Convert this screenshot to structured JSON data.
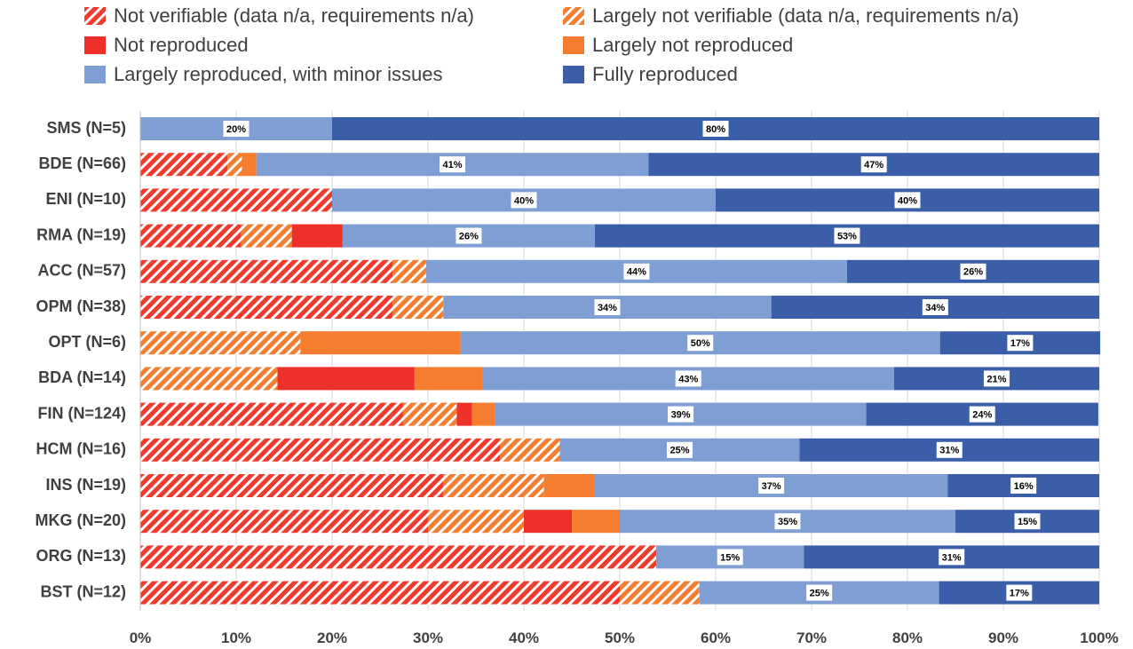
{
  "chart_data": {
    "type": "bar",
    "orientation": "horizontal",
    "stacked": true,
    "categories": [
      "SMS (N=5)",
      "BDE (N=66)",
      "ENI (N=10)",
      "RMA (N=19)",
      "ACC (N=57)",
      "OPM (N=38)",
      "OPT (N=6)",
      "BDA (N=14)",
      "FIN (N=124)",
      "HCM (N=16)",
      "INS (N=19)",
      "MKG (N=20)",
      "ORG (N=13)",
      "BST (N=12)"
    ],
    "series": [
      {
        "name": "Not verifiable (data n/a, requirements n/a)",
        "color": "#f03a2e",
        "hatch": true,
        "values": [
          0,
          9.1,
          20,
          10.5,
          26.3,
          26.3,
          0,
          0,
          27.4,
          37.5,
          31.6,
          30,
          53.8,
          50
        ]
      },
      {
        "name": "Largely not verifiable (data n/a, requirements n/a)",
        "color": "#f47d30",
        "hatch": true,
        "values": [
          0,
          1.5,
          0,
          5.3,
          3.5,
          5.3,
          16.7,
          14.3,
          5.6,
          6.25,
          10.5,
          10,
          0,
          8.3
        ]
      },
      {
        "name": "Not reproduced",
        "color": "#ee302b",
        "hatch": false,
        "values": [
          0,
          0,
          0,
          5.3,
          0,
          0,
          0,
          14.3,
          1.6,
          0,
          0,
          5,
          0,
          0
        ]
      },
      {
        "name": "Largely not reproduced",
        "color": "#f47d30",
        "hatch": false,
        "values": [
          0,
          1.5,
          0,
          0,
          0,
          0,
          16.7,
          7.1,
          2.4,
          0,
          5.3,
          5,
          0,
          0
        ]
      },
      {
        "name": "Largely reproduced, with minor issues",
        "color": "#7f9fd4",
        "hatch": false,
        "values": [
          20,
          40.9,
          40,
          26.3,
          43.9,
          34.2,
          50,
          42.9,
          38.7,
          25,
          36.8,
          35,
          15.4,
          25
        ],
        "value_labels": [
          "20%",
          "41%",
          "40%",
          "26%",
          "44%",
          "34%",
          "50%",
          "43%",
          "39%",
          "25%",
          "37%",
          "35%",
          "15%",
          "25%"
        ]
      },
      {
        "name": "Fully reproduced",
        "color": "#3a5ea8",
        "hatch": false,
        "values": [
          80,
          47.0,
          40,
          52.6,
          26.3,
          34.2,
          16.7,
          21.4,
          24.2,
          31.25,
          15.8,
          15,
          30.8,
          16.7
        ],
        "value_labels": [
          "80%",
          "47%",
          "40%",
          "53%",
          "26%",
          "34%",
          "17%",
          "21%",
          "24%",
          "31%",
          "16%",
          "15%",
          "31%",
          "17%"
        ]
      }
    ],
    "xlim": [
      0,
      100
    ],
    "xticks": [
      {
        "value": 0,
        "label": "0%"
      },
      {
        "value": 10,
        "label": "10%"
      },
      {
        "value": 20,
        "label": "20%"
      },
      {
        "value": 30,
        "label": "30%"
      },
      {
        "value": 40,
        "label": "40%"
      },
      {
        "value": 50,
        "label": "50%"
      },
      {
        "value": 60,
        "label": "60%"
      },
      {
        "value": 70,
        "label": "70%"
      },
      {
        "value": 80,
        "label": "80%"
      },
      {
        "value": 90,
        "label": "90%"
      },
      {
        "value": 100,
        "label": "100%"
      }
    ],
    "grid": true,
    "legend": "top"
  }
}
